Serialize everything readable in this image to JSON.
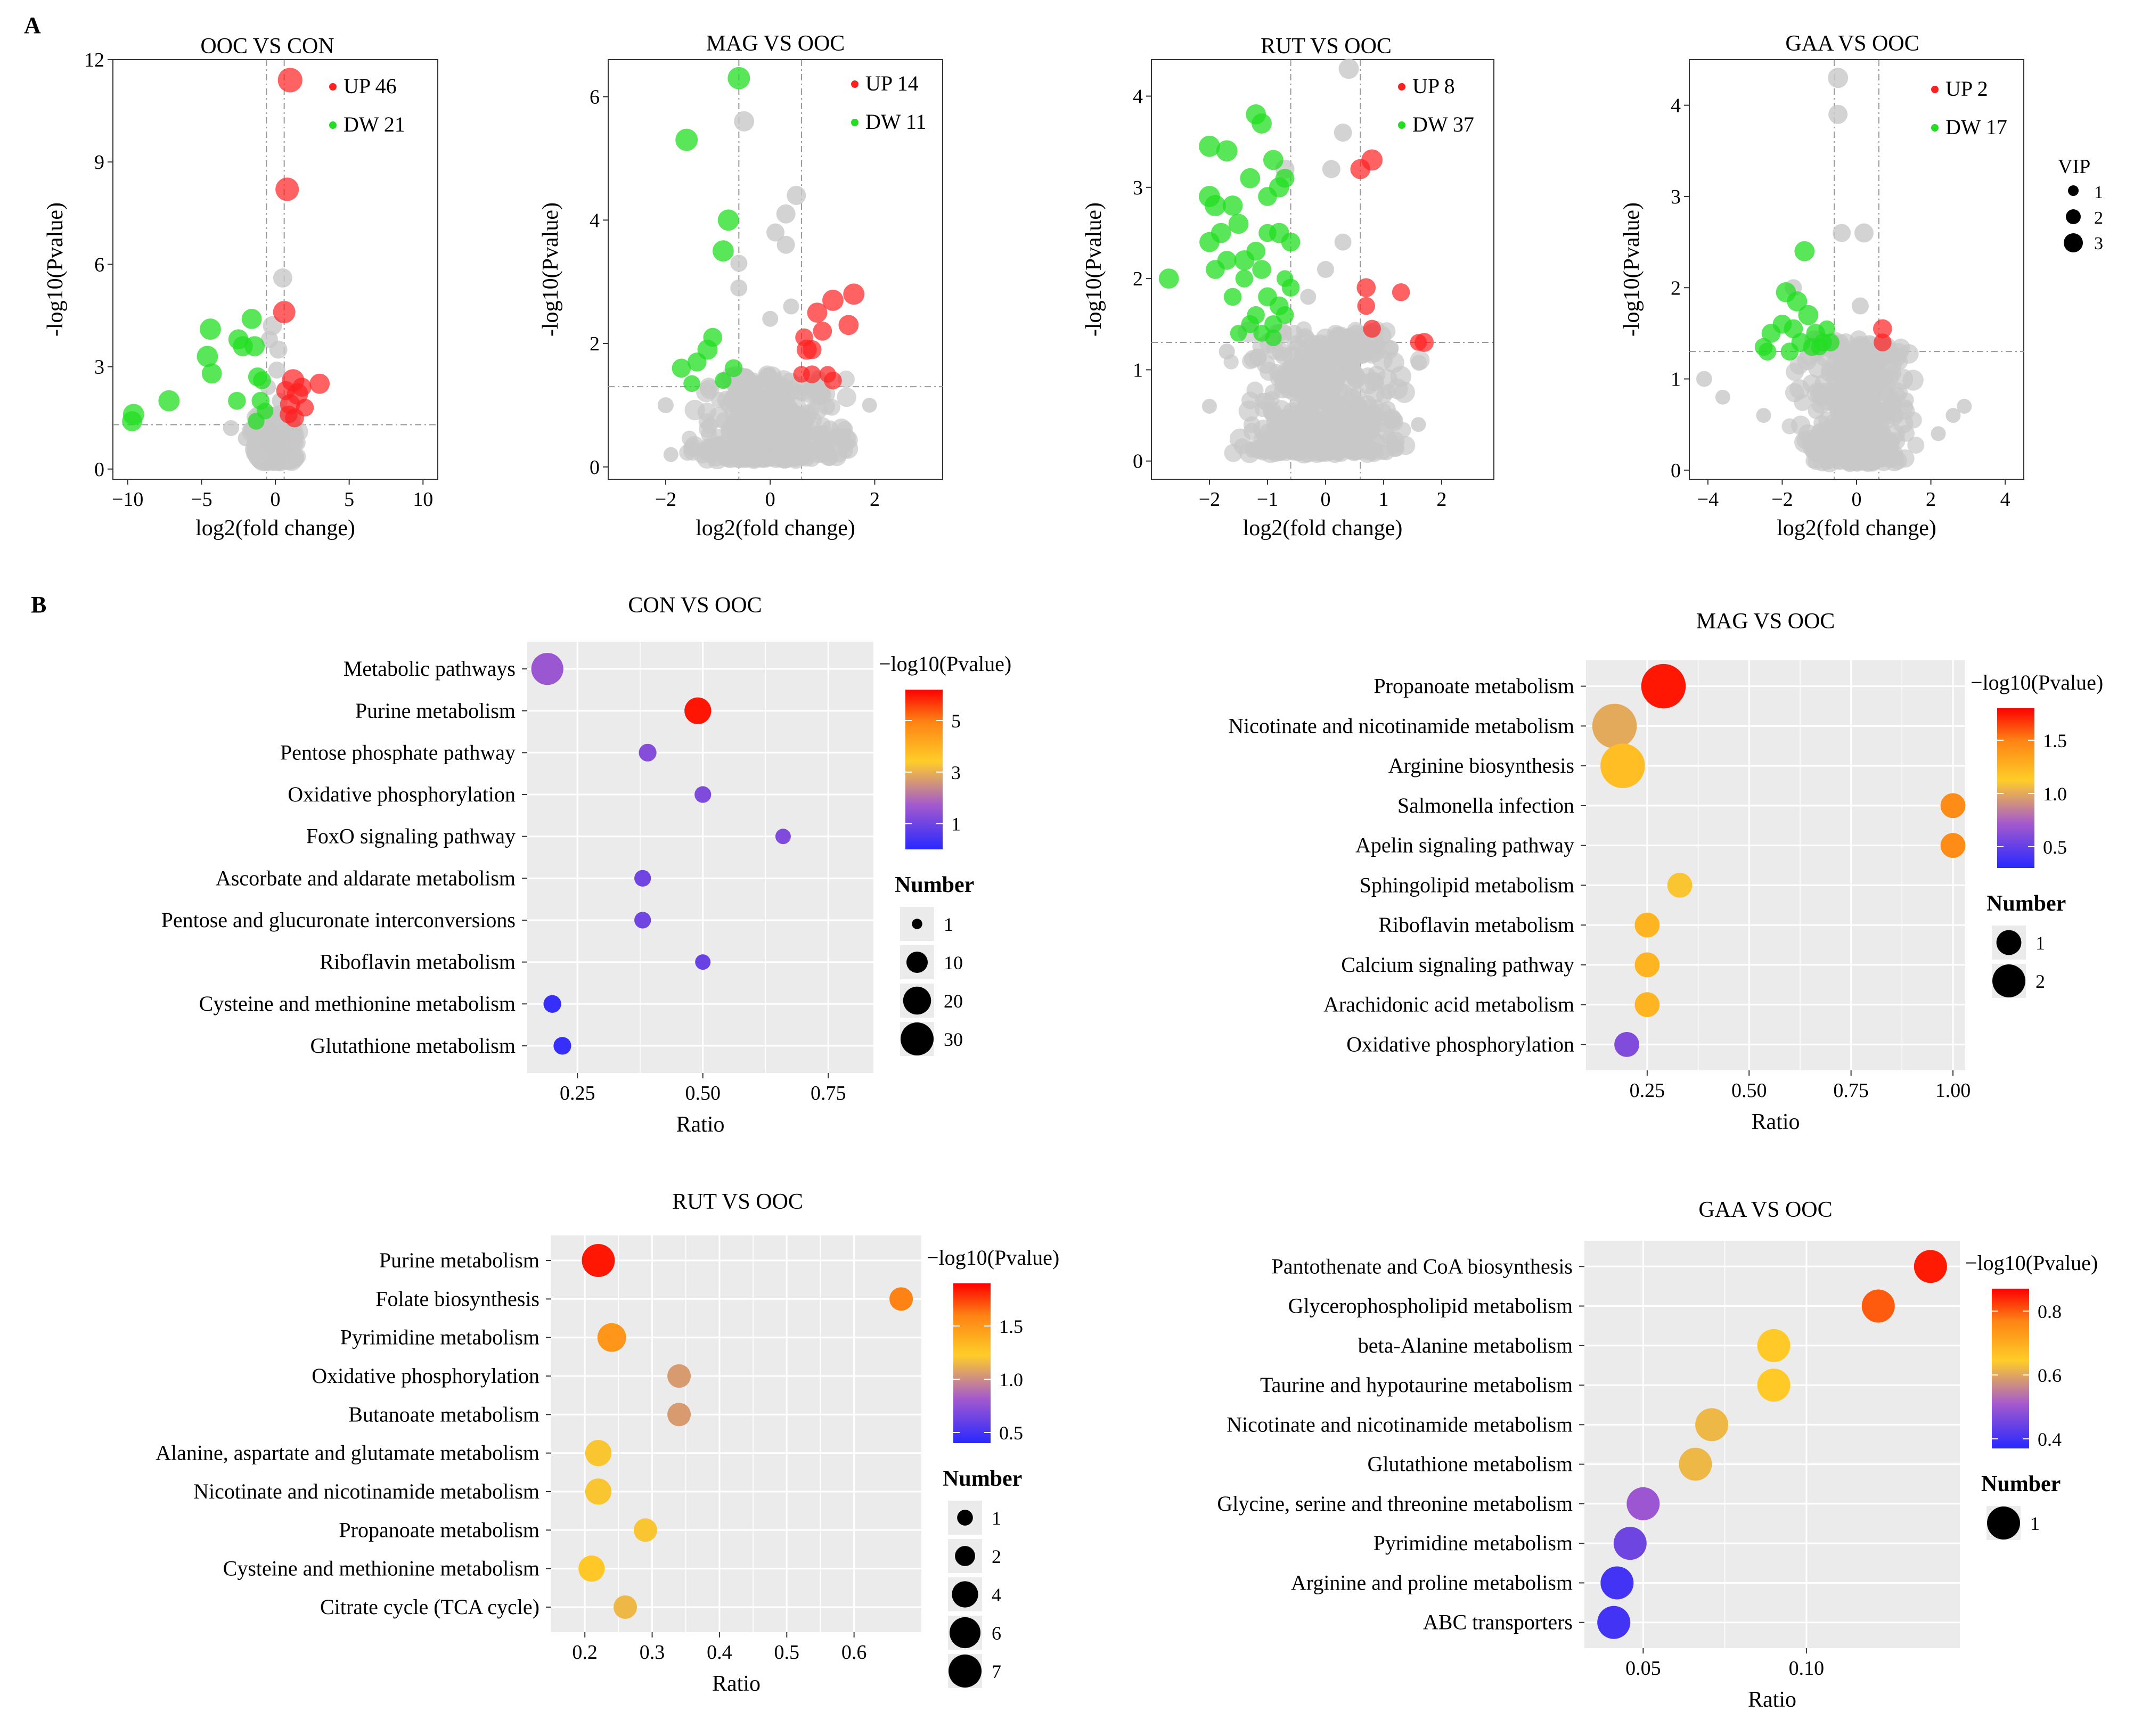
{
  "figure": {
    "label_a": "A",
    "label_b": "B"
  },
  "colors": {
    "up": "#ff2020",
    "down": "#22dd22",
    "ns": "#c8c8c8",
    "panel": "#ebebeb",
    "grid": "#ffffff",
    "axis": "#333333"
  },
  "chart_data": [
    {
      "type": "scatter",
      "id": "volcano-1",
      "title": "OOC  VS   CON",
      "xlabel": "log2(fold change)",
      "ylabel": "-log10(Pvalue)",
      "xlim": [
        -11,
        11
      ],
      "ylim": [
        -0.3,
        12
      ],
      "xticks": [
        -10,
        -5,
        0,
        5,
        10
      ],
      "yticks": [
        0,
        3,
        6,
        9,
        12
      ],
      "fc_lines": [
        -0.6,
        0.6
      ],
      "p_line": 1.3,
      "legend": [
        {
          "label": "UP  46",
          "color": "up"
        },
        {
          "label": "DW  21",
          "color": "down"
        }
      ],
      "up": [
        [
          1.0,
          11.4,
          2.2
        ],
        [
          0.8,
          8.2,
          2.1
        ],
        [
          0.6,
          4.6,
          2.0
        ],
        [
          3.0,
          2.5,
          1.8
        ],
        [
          1.2,
          2.6,
          2.0
        ],
        [
          1.5,
          2.2,
          1.9
        ],
        [
          1.0,
          1.9,
          1.8
        ],
        [
          0.7,
          2.3,
          1.7
        ],
        [
          1.3,
          1.5,
          1.7
        ],
        [
          0.9,
          1.6,
          1.6
        ],
        [
          2.0,
          1.8,
          1.6
        ],
        [
          1.8,
          2.4,
          1.7
        ]
      ],
      "down": [
        [
          -9.6,
          1.6,
          1.9
        ],
        [
          -9.7,
          1.4,
          1.8
        ],
        [
          -7.2,
          2.0,
          1.9
        ],
        [
          -4.4,
          4.1,
          1.9
        ],
        [
          -4.6,
          3.3,
          1.9
        ],
        [
          -4.3,
          2.8,
          1.8
        ],
        [
          -2.5,
          3.8,
          1.8
        ],
        [
          -1.6,
          4.4,
          1.8
        ],
        [
          -1.4,
          3.6,
          1.8
        ],
        [
          -2.2,
          3.6,
          1.8
        ],
        [
          -1.2,
          2.7,
          1.7
        ],
        [
          -0.9,
          2.6,
          1.6
        ],
        [
          -1.0,
          2.0,
          1.6
        ],
        [
          -2.6,
          2.0,
          1.6
        ],
        [
          -0.7,
          1.7,
          1.5
        ],
        [
          -1.3,
          1.4,
          1.5
        ]
      ],
      "ns": [
        [
          0.5,
          5.6,
          1.8
        ],
        [
          -0.2,
          4.2,
          1.8
        ],
        [
          0.2,
          3.5,
          1.7
        ],
        [
          -0.4,
          3.8,
          1.6
        ],
        [
          0.1,
          2.9,
          1.6
        ],
        [
          -0.5,
          2.4,
          1.5
        ],
        [
          0.3,
          2.0,
          1.5
        ],
        [
          -0.2,
          1.6,
          1.4
        ],
        [
          0.4,
          1.4,
          1.4
        ],
        [
          -3.0,
          1.2,
          1.5
        ],
        [
          -2.0,
          0.9,
          1.5
        ],
        [
          -1.0,
          0.4,
          1.4
        ]
      ]
    },
    {
      "type": "scatter",
      "id": "volcano-2",
      "title": "MAG VS OOC",
      "xlabel": "log2(fold change)",
      "ylabel": "-log10(Pvalue)",
      "xlim": [
        -3.1,
        3.3
      ],
      "ylim": [
        -0.2,
        6.6
      ],
      "xticks": [
        -2,
        0,
        2
      ],
      "yticks": [
        0,
        2,
        4,
        6
      ],
      "fc_lines": [
        -0.6,
        0.6
      ],
      "p_line": 1.3,
      "legend": [
        {
          "label": "UP  14",
          "color": "up"
        },
        {
          "label": "DW  11",
          "color": "down"
        }
      ],
      "up": [
        [
          1.6,
          2.8,
          1.9
        ],
        [
          1.2,
          2.7,
          1.9
        ],
        [
          0.9,
          2.5,
          1.8
        ],
        [
          1.5,
          2.3,
          1.8
        ],
        [
          0.7,
          1.9,
          1.8
        ],
        [
          0.8,
          1.9,
          1.7
        ],
        [
          1.0,
          2.2,
          1.7
        ],
        [
          0.8,
          1.5,
          1.6
        ],
        [
          1.2,
          1.4,
          1.6
        ],
        [
          0.6,
          1.5,
          1.5
        ],
        [
          1.1,
          1.5,
          1.5
        ],
        [
          0.65,
          2.1,
          1.6
        ]
      ],
      "down": [
        [
          -0.6,
          6.3,
          2.0
        ],
        [
          -1.6,
          5.3,
          2.0
        ],
        [
          -0.8,
          4.0,
          1.9
        ],
        [
          -0.9,
          3.5,
          1.9
        ],
        [
          -1.2,
          1.9,
          1.8
        ],
        [
          -1.4,
          1.7,
          1.7
        ],
        [
          -1.7,
          1.6,
          1.7
        ],
        [
          -1.1,
          2.1,
          1.7
        ],
        [
          -0.7,
          1.6,
          1.6
        ],
        [
          -1.5,
          1.35,
          1.5
        ],
        [
          -0.9,
          1.4,
          1.5
        ]
      ],
      "ns": [
        [
          -0.5,
          5.6,
          1.9
        ],
        [
          0.5,
          4.4,
          1.8
        ],
        [
          0.3,
          4.1,
          1.8
        ],
        [
          0.1,
          3.8,
          1.7
        ],
        [
          0.3,
          3.6,
          1.7
        ],
        [
          -0.6,
          3.3,
          1.6
        ],
        [
          -0.6,
          2.9,
          1.6
        ],
        [
          0.0,
          2.4,
          1.5
        ],
        [
          0.4,
          2.6,
          1.5
        ],
        [
          -2.0,
          1.0,
          1.5
        ],
        [
          -1.9,
          0.2,
          1.4
        ],
        [
          1.9,
          1.0,
          1.4
        ]
      ]
    },
    {
      "type": "scatter",
      "id": "volcano-3",
      "title": "RUT VS OOC",
      "xlabel": "log2(fold change)",
      "ylabel": "-log10(Pvalue)",
      "xlim": [
        -3.0,
        2.9
      ],
      "ylim": [
        -0.2,
        4.4
      ],
      "xticks": [
        -2,
        -1,
        0,
        1,
        2
      ],
      "yticks": [
        0,
        1,
        2,
        3,
        4
      ],
      "fc_lines": [
        -0.6,
        0.6
      ],
      "p_line": 1.3,
      "legend": [
        {
          "label": "UP  8",
          "color": "up"
        },
        {
          "label": "DW  37",
          "color": "down"
        }
      ],
      "up": [
        [
          0.8,
          3.3,
          1.9
        ],
        [
          0.6,
          3.2,
          1.8
        ],
        [
          0.7,
          1.9,
          1.7
        ],
        [
          1.3,
          1.85,
          1.6
        ],
        [
          0.7,
          1.7,
          1.6
        ],
        [
          0.8,
          1.45,
          1.6
        ],
        [
          1.7,
          1.3,
          1.7
        ],
        [
          1.6,
          1.3,
          1.5
        ]
      ],
      "down": [
        [
          -2.7,
          2.0,
          1.8
        ],
        [
          -2.0,
          3.45,
          1.9
        ],
        [
          -1.7,
          3.4,
          1.9
        ],
        [
          -1.2,
          3.8,
          1.8
        ],
        [
          -1.1,
          3.7,
          1.8
        ],
        [
          -2.0,
          2.9,
          1.9
        ],
        [
          -1.9,
          2.8,
          1.9
        ],
        [
          -1.6,
          2.8,
          1.8
        ],
        [
          -1.3,
          3.1,
          1.8
        ],
        [
          -1.5,
          2.6,
          1.8
        ],
        [
          -0.9,
          3.3,
          1.8
        ],
        [
          -0.8,
          3.0,
          1.8
        ],
        [
          -1.0,
          2.9,
          1.7
        ],
        [
          -0.7,
          3.1,
          1.7
        ],
        [
          -1.8,
          2.5,
          1.8
        ],
        [
          -2.0,
          2.4,
          1.8
        ],
        [
          -1.7,
          2.2,
          1.7
        ],
        [
          -1.4,
          2.2,
          1.8
        ],
        [
          -1.2,
          2.3,
          1.7
        ],
        [
          -0.8,
          2.5,
          1.8
        ],
        [
          -0.6,
          2.4,
          1.7
        ],
        [
          -1.1,
          2.1,
          1.7
        ],
        [
          -1.9,
          2.1,
          1.7
        ],
        [
          -1.0,
          1.8,
          1.7
        ],
        [
          -0.8,
          1.7,
          1.7
        ],
        [
          -0.7,
          1.6,
          1.6
        ],
        [
          -1.2,
          1.6,
          1.6
        ],
        [
          -0.9,
          1.5,
          1.6
        ],
        [
          -1.3,
          1.5,
          1.6
        ],
        [
          -0.6,
          1.9,
          1.6
        ],
        [
          -1.6,
          1.8,
          1.6
        ],
        [
          -0.9,
          1.35,
          1.5
        ],
        [
          -1.1,
          1.4,
          1.5
        ],
        [
          -1.4,
          2.0,
          1.6
        ],
        [
          -0.7,
          2.0,
          1.5
        ],
        [
          -1.0,
          2.5,
          1.6
        ],
        [
          -1.5,
          1.4,
          1.5
        ]
      ],
      "ns": [
        [
          0.4,
          4.3,
          1.9
        ],
        [
          -0.7,
          3.2,
          1.8
        ],
        [
          0.3,
          3.6,
          1.7
        ],
        [
          0.1,
          3.2,
          1.7
        ],
        [
          0.3,
          2.4,
          1.6
        ],
        [
          0.0,
          2.1,
          1.6
        ],
        [
          -0.3,
          1.8,
          1.5
        ],
        [
          -2.0,
          0.6,
          1.4
        ],
        [
          1.6,
          0.4,
          1.4
        ],
        [
          -1.7,
          1.2,
          1.5
        ]
      ]
    },
    {
      "type": "scatter",
      "id": "volcano-4",
      "title": "GAA VS OOC",
      "xlabel": "log2(fold change)",
      "ylabel": "-log10(Pvalue)",
      "xlim": [
        -4.5,
        4.5
      ],
      "ylim": [
        -0.1,
        4.5
      ],
      "xticks": [
        -4,
        -2,
        0,
        2,
        4
      ],
      "yticks": [
        0,
        1,
        2,
        3,
        4
      ],
      "fc_lines": [
        -0.6,
        0.6
      ],
      "p_line": 1.3,
      "legend": [
        {
          "label": "UP  2",
          "color": "up"
        },
        {
          "label": "DW  17",
          "color": "down"
        }
      ],
      "up": [
        [
          0.7,
          1.55,
          1.7
        ],
        [
          0.7,
          1.4,
          1.6
        ]
      ],
      "down": [
        [
          -1.4,
          2.4,
          1.8
        ],
        [
          -1.9,
          1.95,
          1.8
        ],
        [
          -1.6,
          1.85,
          1.8
        ],
        [
          -1.3,
          1.7,
          1.8
        ],
        [
          -2.0,
          1.6,
          1.7
        ],
        [
          -1.7,
          1.55,
          1.7
        ],
        [
          -1.1,
          1.5,
          1.7
        ],
        [
          -2.3,
          1.5,
          1.7
        ],
        [
          -1.5,
          1.4,
          1.7
        ],
        [
          -0.9,
          1.4,
          1.6
        ],
        [
          -2.5,
          1.35,
          1.6
        ],
        [
          -1.2,
          1.35,
          1.6
        ],
        [
          -0.7,
          1.4,
          1.6
        ],
        [
          -1.8,
          1.3,
          1.6
        ],
        [
          -2.4,
          1.3,
          1.6
        ],
        [
          -1.0,
          1.35,
          1.5
        ],
        [
          -0.8,
          1.55,
          1.5
        ]
      ],
      "ns": [
        [
          -0.5,
          4.3,
          1.9
        ],
        [
          -0.5,
          3.9,
          1.8
        ],
        [
          0.2,
          2.6,
          1.8
        ],
        [
          -0.4,
          2.6,
          1.7
        ],
        [
          -1.7,
          2.0,
          1.6
        ],
        [
          0.1,
          1.8,
          1.6
        ],
        [
          -4.1,
          1.0,
          1.5
        ],
        [
          -3.6,
          0.8,
          1.4
        ],
        [
          2.6,
          0.6,
          1.4
        ],
        [
          2.9,
          0.7,
          1.4
        ],
        [
          2.2,
          0.4,
          1.4
        ],
        [
          -2.5,
          0.6,
          1.4
        ]
      ]
    },
    {
      "type": "scatter",
      "id": "bubble-1",
      "title": "CON VS OOC",
      "xlabel": "Ratio",
      "xlim": [
        0.15,
        0.84
      ],
      "xticks": [
        0.25,
        0.5,
        0.75
      ],
      "tick_decimals": 2,
      "colorbar": {
        "title": "−log10(Pvalue)",
        "min": 0,
        "max": 6.2,
        "ticks": [
          1,
          3,
          5
        ],
        "tick_decimals": 0
      },
      "size_title": "Number",
      "size_legend": [
        1,
        10,
        20,
        30
      ],
      "size_max": 30,
      "pathways": [
        "Metabolic pathways",
        "Purine metabolism",
        "Pentose phosphate pathway",
        "Oxidative phosphorylation",
        "FoxO signaling pathway",
        "Ascorbate and aldarate metabolism",
        "Pentose and glucuronate interconversions",
        "Riboflavin metabolism",
        "Cysteine and methionine metabolism",
        "Glutathione metabolism"
      ],
      "ratio": [
        0.19,
        0.49,
        0.39,
        0.5,
        0.66,
        0.38,
        0.38,
        0.5,
        0.2,
        0.22
      ],
      "count": [
        28,
        18,
        6,
        5,
        4,
        5,
        5,
        4,
        6,
        6
      ],
      "pvalue": [
        1.6,
        6.0,
        1.3,
        1.2,
        1.2,
        1.0,
        1.0,
        0.9,
        0.2,
        0.2
      ]
    },
    {
      "type": "scatter",
      "id": "bubble-2",
      "title": "MAG VS  OOC",
      "xlabel": "Ratio",
      "xlim": [
        0.1,
        1.03
      ],
      "xticks": [
        0.25,
        0.5,
        0.75,
        1.0
      ],
      "tick_decimals": 2,
      "colorbar": {
        "title": "−log10(Pvalue)",
        "min": 0.3,
        "max": 1.8,
        "ticks": [
          0.5,
          1.0,
          1.5
        ],
        "tick_decimals": 1
      },
      "size_title": "Number",
      "size_legend": [
        1,
        2
      ],
      "size_max": 2,
      "pathways": [
        "Propanoate metabolism",
        "Nicotinate and nicotinamide metabolism",
        "Arginine biosynthesis",
        "Salmonella infection",
        "Apelin signaling pathway",
        "Sphingolipid metabolism",
        "Riboflavin metabolism",
        "Calcium signaling pathway",
        "Arachidonic acid metabolism",
        "Oxidative phosphorylation"
      ],
      "ratio": [
        0.29,
        0.17,
        0.19,
        1.0,
        1.0,
        0.33,
        0.25,
        0.25,
        0.25,
        0.2
      ],
      "count": [
        4,
        4,
        4,
        1,
        1,
        1,
        1,
        1,
        1,
        1
      ],
      "pvalue": [
        1.75,
        1.0,
        1.2,
        1.45,
        1.45,
        1.1,
        1.25,
        1.25,
        1.25,
        0.6
      ]
    },
    {
      "type": "scatter",
      "id": "bubble-3",
      "title": "RUT VS OOC",
      "xlabel": "Ratio",
      "xlim": [
        0.15,
        0.7
      ],
      "xticks": [
        0.2,
        0.3,
        0.4,
        0.5,
        0.6
      ],
      "tick_decimals": 1,
      "colorbar": {
        "title": "−log10(Pvalue)",
        "min": 0.4,
        "max": 1.9,
        "ticks": [
          0.5,
          1.0,
          1.5
        ],
        "tick_decimals": 1
      },
      "size_title": "Number",
      "size_legend": [
        1,
        2,
        4,
        6,
        7
      ],
      "size_max": 7,
      "pathways": [
        "Purine metabolism",
        "Folate biosynthesis",
        "Pyrimidine metabolism",
        "Oxidative phosphorylation",
        "Butanoate metabolism",
        "Alanine, aspartate and glutamate metabolism",
        "Nicotinate and nicotinamide metabolism",
        "Propanoate metabolism",
        "Cysteine and methionine metabolism",
        "Citrate cycle (TCA cycle)"
      ],
      "ratio": [
        0.22,
        0.67,
        0.24,
        0.34,
        0.34,
        0.22,
        0.22,
        0.29,
        0.21,
        0.26
      ],
      "count": [
        7,
        3,
        5,
        3,
        3,
        4,
        4,
        3,
        4,
        3
      ],
      "pvalue": [
        1.85,
        1.6,
        1.5,
        1.05,
        1.05,
        1.2,
        1.2,
        1.2,
        1.25,
        1.15
      ]
    },
    {
      "type": "scatter",
      "id": "bubble-4",
      "title": "GAA VS OOC",
      "xlabel": "Ratio",
      "xlim": [
        0.032,
        0.147
      ],
      "xticks": [
        0.05,
        0.1
      ],
      "tick_decimals": 2,
      "colorbar": {
        "title": "−log10(Pvalue)",
        "min": 0.37,
        "max": 0.87,
        "ticks": [
          0.4,
          0.6,
          0.8
        ],
        "tick_decimals": 1
      },
      "size_title": "Number",
      "size_legend": [
        1
      ],
      "size_max": 1,
      "pathways": [
        "Pantothenate and CoA biosynthesis",
        "Glycerophospholipid metabolism",
        "beta-Alanine metabolism",
        "Taurine and hypotaurine metabolism",
        "Nicotinate and nicotinamide metabolism",
        "Glutathione metabolism",
        "Glycine, serine and threonine metabolism",
        "Pyrimidine metabolism",
        "Arginine and proline metabolism",
        "ABC transporters"
      ],
      "ratio": [
        0.138,
        0.122,
        0.09,
        0.09,
        0.071,
        0.066,
        0.05,
        0.046,
        0.042,
        0.041
      ],
      "count": [
        1,
        1,
        1,
        1,
        1,
        1,
        1,
        1,
        1,
        1
      ],
      "pvalue": [
        0.85,
        0.8,
        0.65,
        0.65,
        0.62,
        0.62,
        0.5,
        0.45,
        0.4,
        0.4
      ]
    }
  ]
}
